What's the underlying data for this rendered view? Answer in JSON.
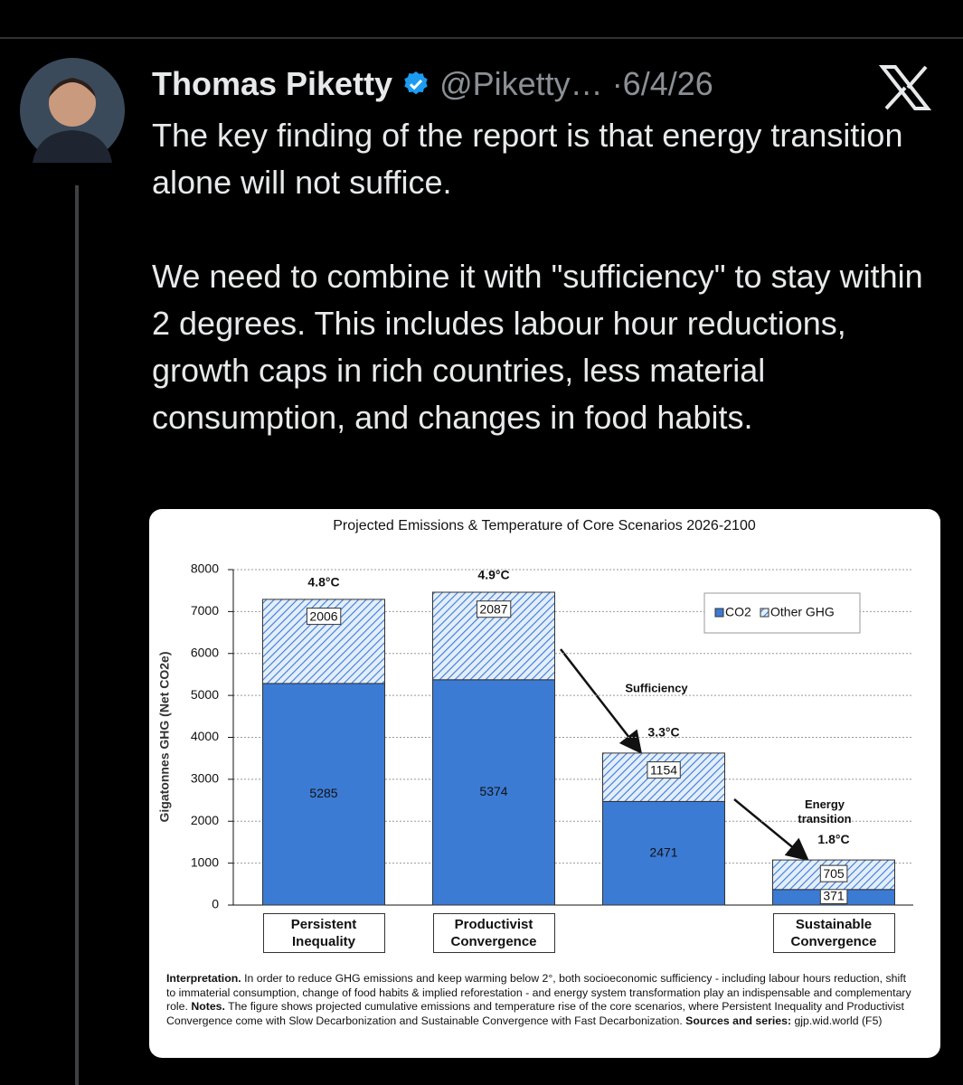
{
  "tweet": {
    "author": "Thomas Piketty",
    "handle": "@Piketty…",
    "date": "·6/4/26",
    "paragraphs": [
      "The key finding of the report is that energy transition alone will not suffice.",
      "We need to combine it with \"sufficiency\" to stay within 2 degrees. This includes labour hour reductions, growth caps in rich countries, less material consumption, and changes in food habits."
    ]
  },
  "chart_data": {
    "type": "stacked-bar",
    "title": "Projected Emissions & Temperature of Core Scenarios 2026-2100",
    "y_label": "Gigatonnes GHG (Net CO2e)",
    "categories": [
      "Persistent Inequality",
      "Productivist Convergence",
      null,
      "Sustainable Convergence"
    ],
    "series": [
      {
        "name": "CO2",
        "color": "#3b7bd4",
        "values": [
          5285,
          5374,
          2471,
          371
        ]
      },
      {
        "name": "Other GHG",
        "color": "#3b7bd4",
        "hatched": true,
        "values": [
          2006,
          2087,
          1154,
          705
        ]
      }
    ],
    "temperatures": [
      "4.8°C",
      "4.9°C",
      "3.3°C",
      "1.8°C"
    ],
    "arrow_labels": [
      "Sufficiency",
      "Energy transition"
    ],
    "ylim": [
      0,
      8000
    ],
    "yticks": [
      0,
      1000,
      2000,
      3000,
      4000,
      5000,
      6000,
      7000,
      8000
    ],
    "grid": true,
    "legend": "top-right",
    "note": [
      {
        "text": "Interpretation.",
        "bold": true
      },
      {
        "text": " In order to reduce GHG emissions and keep warming below 2°, both socioeconomic sufficiency - including labour hours reduction, shift to immaterial consumption, change of food habits & implied reforestation - and energy system transformation play an indispensable and complementary role. ",
        "bold": false
      },
      {
        "text": "Notes.",
        "bold": true
      },
      {
        "text": " The figure shows projected cumulative emissions and temperature rise of the core scenarios, where Persistent Inequality and Productivist Convergence come with Slow Decarbonization and Sustainable Convergence with Fast Decarbonization. ",
        "bold": false
      },
      {
        "text": "Sources and series:",
        "bold": true
      },
      {
        "text": " gjp.wid.world (F5)",
        "bold": false
      }
    ]
  }
}
